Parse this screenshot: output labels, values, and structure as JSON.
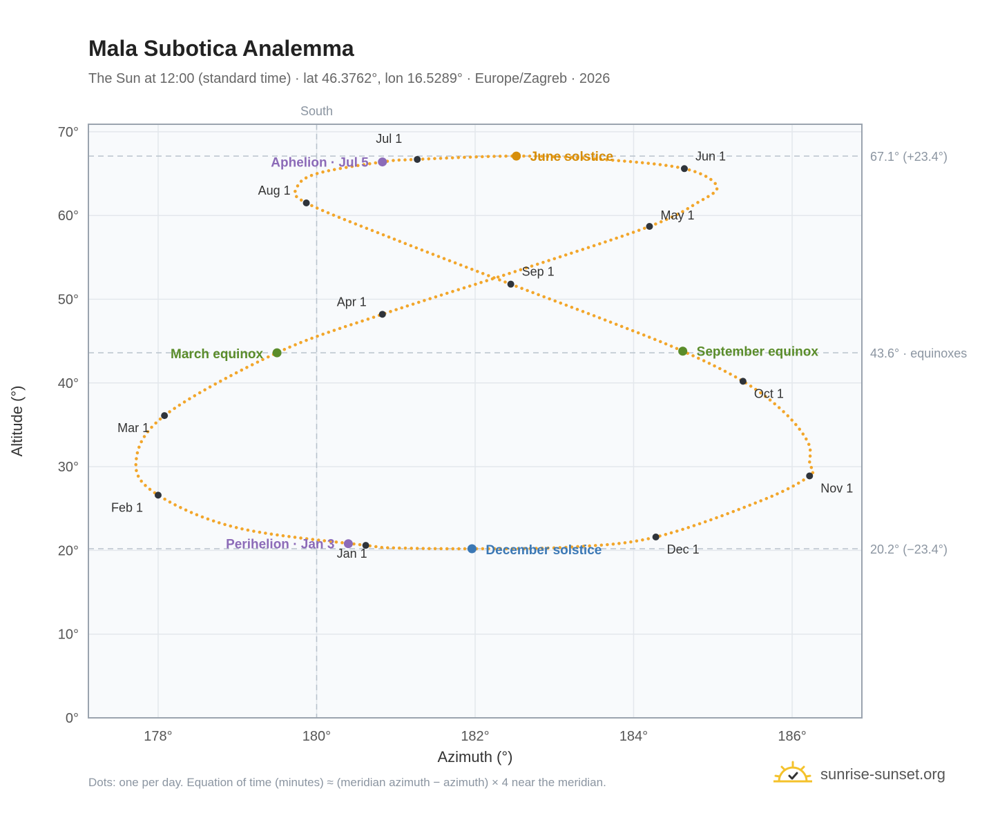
{
  "header": {
    "title": "Mala Subotica Analemma",
    "subtitle": "The Sun at 12:00 (standard time) · lat 46.3762°, lon 16.5289° · Europe/Zagreb · 2026"
  },
  "footer": {
    "note": "Dots: one per day. Equation of time (minutes) ≈ (meridian azimuth − azimuth) × 4 near the meridian.",
    "brand": "sunrise-sunset.org"
  },
  "colors": {
    "curve": "#f2a62b",
    "month_marker": "#2f343b",
    "solstice_june": "#d68e0b",
    "solstice_december": "#3b78b5",
    "equinox": "#5a8c2a",
    "apsis": "#8c6bb8",
    "grid": "#e3e7ec",
    "plot_bg": "#f8fafc",
    "axis": "#9aa3ae",
    "ref_line": "#b8c2cc"
  },
  "chart_data": {
    "type": "scatter",
    "xlabel": "Azimuth (°)",
    "ylabel": "Altitude (°)",
    "xlim": [
      177.12,
      186.88
    ],
    "ylim": [
      0,
      70.9
    ],
    "x_ticks": [
      {
        "value": 178,
        "label": "178°"
      },
      {
        "value": 180,
        "label": "180°"
      },
      {
        "value": 182,
        "label": "182°"
      },
      {
        "value": 184,
        "label": "184°"
      },
      {
        "value": 186,
        "label": "186°"
      }
    ],
    "y_ticks": [
      {
        "value": 0,
        "label": "0°"
      },
      {
        "value": 10,
        "label": "10°"
      },
      {
        "value": 20,
        "label": "20°"
      },
      {
        "value": 30,
        "label": "30°"
      },
      {
        "value": 40,
        "label": "40°"
      },
      {
        "value": 50,
        "label": "50°"
      },
      {
        "value": 60,
        "label": "60°"
      },
      {
        "value": 70,
        "label": "70°"
      }
    ],
    "grid": true,
    "meridian": {
      "azimuth": 180,
      "label": "South"
    },
    "reference_lines": [
      {
        "altitude": 67.1,
        "label": "67.1° (+23.4°)"
      },
      {
        "altitude": 43.6,
        "label": "43.6° · equinoxes"
      },
      {
        "altitude": 20.2,
        "label": "20.2° (−23.4°)"
      }
    ],
    "series": [
      {
        "points": [
          [
            180.62,
            20.6
          ],
          [
            179.0,
            22.7
          ],
          [
            178.0,
            26.6
          ],
          [
            177.72,
            30.5
          ],
          [
            178.08,
            36.1
          ],
          [
            179.5,
            43.6
          ],
          [
            180.83,
            48.2
          ],
          [
            182.6,
            53.6
          ],
          [
            184.2,
            58.7
          ],
          [
            184.8,
            61.5
          ],
          [
            185.05,
            63.5
          ],
          [
            184.64,
            65.6
          ],
          [
            183.6,
            66.7
          ],
          [
            182.52,
            67.1
          ],
          [
            181.27,
            66.7
          ],
          [
            180.83,
            66.4
          ],
          [
            180.0,
            65.0
          ],
          [
            179.75,
            63.3
          ],
          [
            179.87,
            61.5
          ],
          [
            181.0,
            57.1
          ],
          [
            182.45,
            51.8
          ],
          [
            183.7,
            47.3
          ],
          [
            184.62,
            43.8
          ],
          [
            185.38,
            40.2
          ],
          [
            185.9,
            36.5
          ],
          [
            186.2,
            32.9
          ],
          [
            186.22,
            30.4
          ],
          [
            186.22,
            28.9
          ],
          [
            185.6,
            25.9
          ],
          [
            184.28,
            21.6
          ],
          [
            183.2,
            20.4
          ],
          [
            181.96,
            20.2
          ],
          [
            181.0,
            20.3
          ],
          [
            180.62,
            20.6
          ]
        ]
      }
    ],
    "month_markers": [
      {
        "label": "Jan 1",
        "x": 180.62,
        "y": 20.6
      },
      {
        "label": "Feb 1",
        "x": 178.0,
        "y": 26.6
      },
      {
        "label": "Mar 1",
        "x": 178.08,
        "y": 36.1
      },
      {
        "label": "Apr 1",
        "x": 180.83,
        "y": 48.2
      },
      {
        "label": "May 1",
        "x": 184.2,
        "y": 58.7
      },
      {
        "label": "Jun 1",
        "x": 184.64,
        "y": 65.6
      },
      {
        "label": "Jul 1",
        "x": 181.27,
        "y": 66.7
      },
      {
        "label": "Aug 1",
        "x": 179.87,
        "y": 61.5
      },
      {
        "label": "Sep 1",
        "x": 182.45,
        "y": 51.8
      },
      {
        "label": "Oct 1",
        "x": 185.38,
        "y": 40.2
      },
      {
        "label": "Nov 1",
        "x": 186.22,
        "y": 28.9
      },
      {
        "label": "Dec 1",
        "x": 184.28,
        "y": 21.6
      }
    ],
    "events": [
      {
        "label": "June solstice",
        "x": 182.52,
        "y": 67.1,
        "kind": "solstice_june"
      },
      {
        "label": "December solstice",
        "x": 181.96,
        "y": 20.2,
        "kind": "solstice_december"
      },
      {
        "label": "March equinox",
        "x": 179.5,
        "y": 43.6,
        "kind": "equinox"
      },
      {
        "label": "September equinox",
        "x": 184.62,
        "y": 43.8,
        "kind": "equinox"
      },
      {
        "label": "Aphelion · Jul 5",
        "x": 180.83,
        "y": 66.4,
        "kind": "apsis"
      },
      {
        "label": "Perihelion · Jan 3",
        "x": 180.4,
        "y": 20.8,
        "kind": "apsis"
      }
    ]
  }
}
